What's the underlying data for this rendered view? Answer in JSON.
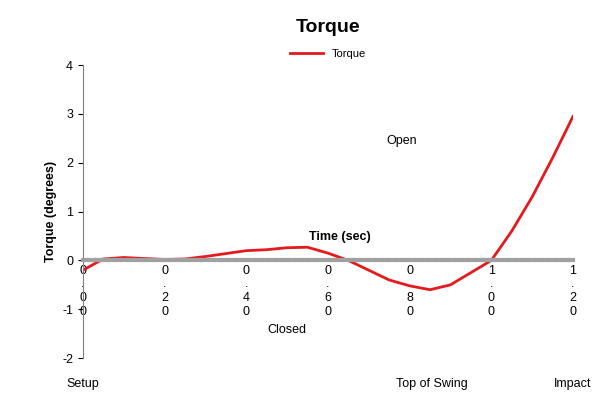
{
  "chart_data": {
    "type": "line",
    "title": "Torque",
    "y_label": "Torque (degrees)",
    "x_label": "Time (sec)",
    "x": [
      0.0,
      0.05,
      0.1,
      0.15,
      0.2,
      0.25,
      0.3,
      0.35,
      0.4,
      0.45,
      0.5,
      0.55,
      0.6,
      0.65,
      0.7,
      0.75,
      0.8,
      0.85,
      0.9,
      0.95,
      1.0,
      1.05,
      1.1,
      1.15,
      1.2
    ],
    "series": [
      {
        "name": "Torque",
        "color": "#e41a1c",
        "line_style": "solid",
        "values": [
          -0.2,
          0.03,
          0.06,
          0.04,
          0.02,
          0.03,
          0.08,
          0.14,
          0.2,
          0.22,
          0.26,
          0.27,
          0.15,
          0.0,
          -0.2,
          -0.4,
          -0.52,
          -0.6,
          -0.5,
          -0.25,
          0.0,
          0.6,
          1.3,
          2.1,
          2.95
        ]
      }
    ],
    "xlim": [
      0,
      1.2
    ],
    "xticks": [
      {
        "value": 0,
        "label": "0.00"
      },
      {
        "value": 0.2,
        "label": "0.20"
      },
      {
        "value": 0.4,
        "label": "0.40"
      },
      {
        "value": 0.6,
        "label": "0.60"
      },
      {
        "value": 0.8,
        "label": "0.80"
      },
      {
        "value": 1.0,
        "label": "1.00"
      },
      {
        "value": 1.2,
        "label": "1.20"
      }
    ],
    "ylim": [
      -2,
      4
    ],
    "yticks": [
      -2,
      -1,
      0,
      1,
      2,
      3,
      4
    ],
    "grid": false,
    "legend": "upper center",
    "annotations": [
      {
        "text": "Open",
        "x": 0.78,
        "y": 2.45
      },
      {
        "text": "Closed",
        "x": 0.5,
        "y": -1.43
      }
    ],
    "phase_labels": [
      {
        "text": "Setup",
        "x": 0.0
      },
      {
        "text": "Top of Swing",
        "x": 0.855
      },
      {
        "text": "Impact",
        "x": 1.2
      }
    ]
  }
}
